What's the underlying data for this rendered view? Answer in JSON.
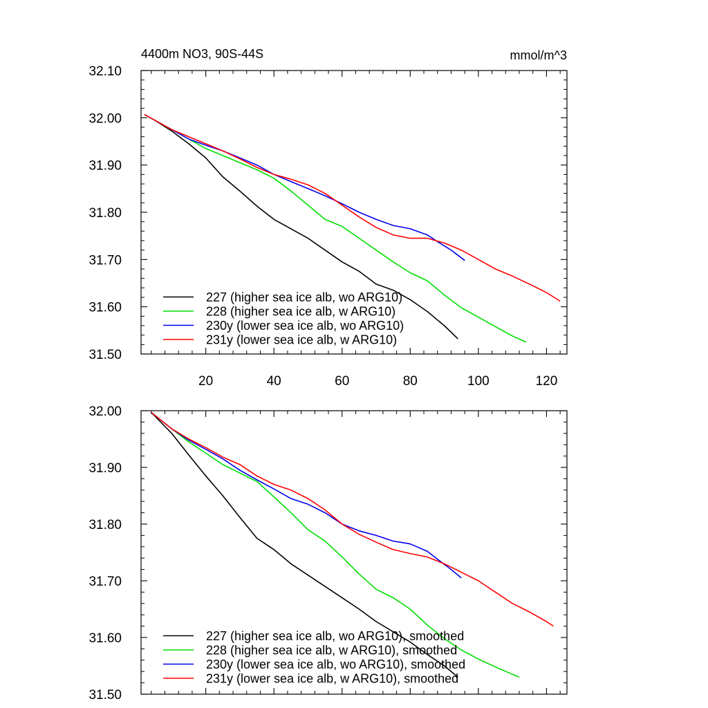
{
  "chart_data": [
    {
      "type": "line",
      "title_left": "4400m NO3, 90S-44S",
      "title_right": "mmol/m^3",
      "xlim": [
        1,
        126
      ],
      "ylim": [
        31.5,
        32.1
      ],
      "xticks": [
        20,
        40,
        60,
        80,
        100,
        120
      ],
      "xtick_labels": [
        "20",
        "40",
        "60",
        "80",
        "100",
        "120"
      ],
      "yticks": [
        31.5,
        31.6,
        31.7,
        31.8,
        31.9,
        32.0,
        32.1
      ],
      "ytick_labels": [
        "31.50",
        "31.60",
        "31.70",
        "31.80",
        "31.90",
        "32.00",
        "32.10"
      ],
      "series": [
        {
          "name": "227 (higher sea ice alb, wo ARG10)",
          "color": "#000000",
          "x": [
            2,
            5,
            10,
            15,
            20,
            25,
            30,
            35,
            40,
            45,
            50,
            55,
            60,
            65,
            70,
            75,
            80,
            85,
            90,
            94
          ],
          "y": [
            32.007,
            31.995,
            31.972,
            31.945,
            31.915,
            31.875,
            31.845,
            31.813,
            31.785,
            31.765,
            31.745,
            31.72,
            31.695,
            31.675,
            31.648,
            31.635,
            31.615,
            31.59,
            31.56,
            31.532
          ]
        },
        {
          "name": "228 (higher sea ice alb, w ARG10)",
          "color": "#00dd00",
          "x": [
            2,
            5,
            10,
            15,
            20,
            25,
            30,
            35,
            40,
            45,
            50,
            55,
            60,
            65,
            70,
            75,
            80,
            85,
            90,
            95,
            100,
            105,
            110,
            114
          ],
          "y": [
            32.007,
            31.995,
            31.975,
            31.955,
            31.935,
            31.92,
            31.905,
            31.89,
            31.872,
            31.845,
            31.815,
            31.785,
            31.77,
            31.745,
            31.72,
            31.695,
            31.672,
            31.655,
            31.625,
            31.598,
            31.578,
            31.558,
            31.538,
            31.525
          ]
        },
        {
          "name": "230y (lower sea ice alb, wo ARG10)",
          "color": "#0000ee",
          "x": [
            2,
            5,
            10,
            15,
            20,
            25,
            30,
            35,
            40,
            45,
            50,
            55,
            60,
            65,
            70,
            75,
            80,
            85,
            88,
            92,
            96
          ],
          "y": [
            32.007,
            31.995,
            31.975,
            31.955,
            31.942,
            31.93,
            31.915,
            31.9,
            31.88,
            31.865,
            31.85,
            31.835,
            31.818,
            31.8,
            31.785,
            31.772,
            31.765,
            31.752,
            31.738,
            31.72,
            31.698
          ]
        },
        {
          "name": "231y (lower sea ice alb, w ARG10)",
          "color": "#ff0000",
          "x": [
            2,
            5,
            10,
            15,
            20,
            25,
            30,
            35,
            40,
            45,
            50,
            55,
            60,
            65,
            70,
            75,
            80,
            85,
            90,
            95,
            100,
            105,
            110,
            115,
            120,
            124
          ],
          "y": [
            32.007,
            31.995,
            31.975,
            31.96,
            31.945,
            31.93,
            31.913,
            31.895,
            31.88,
            31.87,
            31.858,
            31.84,
            31.815,
            31.79,
            31.768,
            31.752,
            31.745,
            31.745,
            31.735,
            31.72,
            31.7,
            31.68,
            31.665,
            31.648,
            31.63,
            31.612
          ]
        }
      ]
    },
    {
      "type": "line",
      "xlim": [
        1,
        126
      ],
      "ylim": [
        31.5,
        32.0
      ],
      "xticks": [
        20,
        40,
        60,
        80,
        100,
        120
      ],
      "yticks": [
        31.5,
        31.6,
        31.7,
        31.8,
        31.9,
        32.0
      ],
      "ytick_labels": [
        "31.50",
        "31.60",
        "31.70",
        "31.80",
        "31.90",
        "32.00"
      ],
      "series": [
        {
          "name": "227 (higher sea ice alb, wo ARG10), smoothed",
          "color": "#000000",
          "x": [
            4,
            10,
            15,
            20,
            25,
            30,
            35,
            40,
            45,
            50,
            55,
            60,
            65,
            70,
            75,
            80,
            85,
            90,
            94
          ],
          "y": [
            31.997,
            31.96,
            31.922,
            31.885,
            31.85,
            31.812,
            31.775,
            31.755,
            31.73,
            31.71,
            31.69,
            31.67,
            31.65,
            31.628,
            31.61,
            31.592,
            31.57,
            31.55,
            31.53
          ]
        },
        {
          "name": "228 (higher sea ice alb, w ARG10), smoothed",
          "color": "#00dd00",
          "x": [
            4,
            10,
            15,
            20,
            25,
            30,
            35,
            40,
            45,
            50,
            55,
            60,
            65,
            70,
            75,
            80,
            85,
            90,
            95,
            100,
            105,
            110,
            112
          ],
          "y": [
            31.997,
            31.968,
            31.945,
            31.925,
            31.905,
            31.89,
            31.875,
            31.848,
            31.82,
            31.79,
            31.77,
            31.742,
            31.712,
            31.685,
            31.67,
            31.65,
            31.622,
            31.598,
            31.578,
            31.562,
            31.548,
            31.535,
            31.53
          ]
        },
        {
          "name": "230y (lower sea ice alb, wo ARG10), smoothed",
          "color": "#0000ee",
          "x": [
            4,
            10,
            15,
            20,
            25,
            30,
            35,
            40,
            45,
            50,
            55,
            60,
            65,
            70,
            75,
            80,
            85,
            88,
            92,
            95
          ],
          "y": [
            31.997,
            31.968,
            31.948,
            31.932,
            31.915,
            31.895,
            31.878,
            31.862,
            31.845,
            31.835,
            31.82,
            31.8,
            31.788,
            31.78,
            31.77,
            31.765,
            31.752,
            31.738,
            31.72,
            31.705
          ]
        },
        {
          "name": "231y (lower sea ice alb, w ARG10), smoothed",
          "color": "#ff0000",
          "x": [
            4,
            10,
            15,
            20,
            25,
            30,
            35,
            40,
            45,
            50,
            55,
            60,
            65,
            70,
            75,
            80,
            85,
            90,
            95,
            100,
            105,
            110,
            115,
            120,
            122
          ],
          "y": [
            31.997,
            31.968,
            31.95,
            31.935,
            31.918,
            31.905,
            31.885,
            31.87,
            31.86,
            31.845,
            31.825,
            31.8,
            31.782,
            31.768,
            31.755,
            31.748,
            31.742,
            31.73,
            31.715,
            31.7,
            31.68,
            31.66,
            31.645,
            31.628,
            31.62
          ]
        }
      ]
    }
  ]
}
